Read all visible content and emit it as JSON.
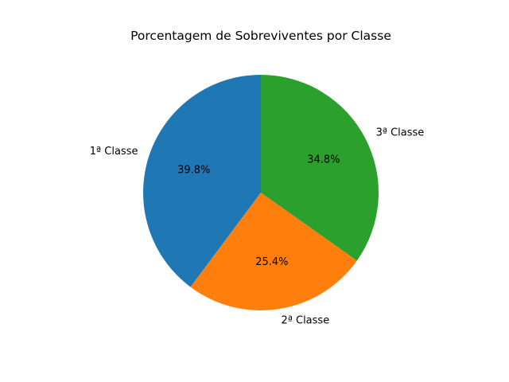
{
  "chart_data": {
    "type": "pie",
    "title": "Porcentagem de Sobreviventes por Classe",
    "slices": [
      {
        "label": "1ª Classe",
        "value": 39.8,
        "pct_label": "39.8%",
        "color": "#1f77b4"
      },
      {
        "label": "2ª Classe",
        "value": 25.4,
        "pct_label": "25.4%",
        "color": "#ff7f0e"
      },
      {
        "label": "3ª Classe",
        "value": 34.8,
        "pct_label": "34.8%",
        "color": "#2ca02c"
      }
    ],
    "start_angle_deg": 90,
    "direction": "counterclockwise"
  }
}
